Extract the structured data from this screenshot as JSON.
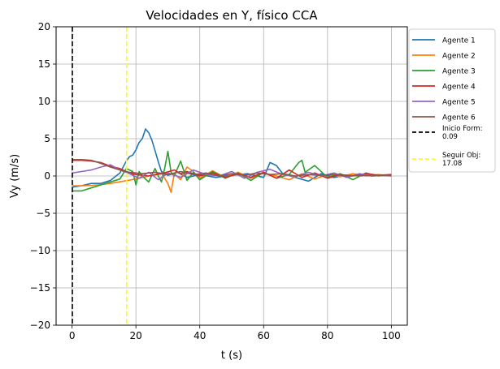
{
  "chart_data": {
    "type": "line",
    "title": "Velocidades en Y, físico CCA",
    "xlabel": "t (s)",
    "ylabel": "Vy (m/s)",
    "xlim": [
      -5,
      105
    ],
    "ylim": [
      -20,
      20
    ],
    "xticks": [
      0,
      20,
      40,
      60,
      80,
      100
    ],
    "yticks": [
      -20,
      -15,
      -10,
      -5,
      0,
      5,
      10,
      15,
      20
    ],
    "xtick_labels": [
      "0",
      "20",
      "40",
      "60",
      "80",
      "100"
    ],
    "ytick_labels": [
      "−20",
      "−15",
      "−10",
      "−5",
      "0",
      "5",
      "10",
      "15",
      "20"
    ],
    "grid": true,
    "legend_position": "outside-right",
    "series": [
      {
        "name": "Agente 1",
        "color": "#1f77b4",
        "x": [
          0,
          3,
          6,
          9,
          12,
          15,
          17,
          18,
          19,
          20,
          21,
          22,
          23,
          24,
          25,
          26,
          27,
          28,
          30,
          33,
          36,
          40,
          45,
          50,
          55,
          60,
          62,
          64,
          66,
          70,
          74,
          78,
          82,
          86,
          90,
          95,
          100
        ],
        "y": [
          -1.5,
          -1.3,
          -1.0,
          -1.0,
          -0.6,
          0.4,
          2.0,
          2.6,
          2.8,
          3.5,
          4.5,
          5.0,
          6.3,
          5.8,
          4.8,
          3.4,
          1.9,
          0.6,
          0.1,
          0.5,
          -0.2,
          0.2,
          -0.2,
          0.1,
          0.3,
          -0.2,
          1.8,
          1.4,
          0.3,
          -0.2,
          -0.7,
          0.3,
          -0.2,
          0.1,
          0.0,
          0.1,
          0.0
        ]
      },
      {
        "name": "Agente 2",
        "color": "#ff7f0e",
        "x": [
          0,
          4,
          8,
          12,
          16,
          20,
          24,
          28,
          30,
          31,
          32,
          34,
          36,
          38,
          40,
          44,
          48,
          52,
          56,
          60,
          64,
          68,
          72,
          76,
          80,
          84,
          88,
          92,
          96,
          100
        ],
        "y": [
          -1.3,
          -1.3,
          -1.2,
          -1.0,
          -0.7,
          -0.4,
          0.0,
          0.4,
          -1.0,
          -2.2,
          0.3,
          -0.5,
          1.2,
          0.6,
          -0.3,
          0.7,
          -0.2,
          0.5,
          -0.3,
          0.4,
          0.0,
          -0.5,
          0.3,
          -0.4,
          0.2,
          -0.1,
          0.3,
          0.0,
          0.2,
          0.0
        ]
      },
      {
        "name": "Agente 3",
        "color": "#2ca02c",
        "x": [
          0,
          3,
          6,
          9,
          12,
          15,
          17,
          19,
          20,
          21,
          22,
          24,
          26,
          27,
          28,
          29,
          30,
          31,
          32,
          34,
          36,
          38,
          40,
          44,
          48,
          52,
          56,
          60,
          64,
          68,
          71,
          72,
          73,
          76,
          80,
          84,
          88,
          92,
          96,
          100
        ],
        "y": [
          -2.0,
          -2.0,
          -1.6,
          -1.2,
          -0.8,
          -0.4,
          1.0,
          0.6,
          -1.2,
          0.6,
          0.0,
          -0.8,
          1.0,
          0.0,
          -0.8,
          1.0,
          3.3,
          0.5,
          0.0,
          2.0,
          -0.6,
          0.5,
          -0.5,
          0.6,
          -0.3,
          0.4,
          -0.6,
          0.5,
          -0.3,
          0.2,
          1.8,
          2.1,
          0.5,
          1.4,
          -0.2,
          0.3,
          -0.5,
          0.4,
          0.0,
          0.2
        ]
      },
      {
        "name": "Agente 4",
        "color": "#d62728",
        "x": [
          0,
          3,
          6,
          9,
          12,
          15,
          18,
          20,
          24,
          28,
          32,
          34,
          36,
          40,
          44,
          48,
          52,
          56,
          60,
          64,
          68,
          72,
          76,
          80,
          84,
          88,
          92,
          96,
          100
        ],
        "y": [
          2.1,
          2.1,
          2.0,
          1.8,
          1.3,
          1.0,
          0.4,
          0.2,
          0.0,
          0.3,
          0.8,
          0.3,
          0.6,
          0.0,
          0.4,
          -0.2,
          0.3,
          -0.2,
          0.5,
          -0.3,
          0.8,
          -0.2,
          0.4,
          -0.3,
          0.2,
          0.0,
          0.3,
          0.1,
          0.2
        ]
      },
      {
        "name": "Agente 5",
        "color": "#9467bd",
        "x": [
          0,
          3,
          6,
          9,
          12,
          15,
          18,
          21,
          24,
          27,
          30,
          34,
          38,
          42,
          46,
          50,
          54,
          58,
          62,
          66,
          70,
          74,
          78,
          82,
          86,
          90,
          94,
          98,
          100
        ],
        "y": [
          0.4,
          0.6,
          0.8,
          1.2,
          1.5,
          0.8,
          0.3,
          -0.3,
          0.5,
          -0.5,
          0.4,
          -0.2,
          0.8,
          0.2,
          0.0,
          0.6,
          -0.3,
          0.5,
          0.9,
          0.2,
          -0.1,
          0.5,
          0.0,
          0.4,
          -0.2,
          0.3,
          0.0,
          0.1,
          0.0
        ]
      },
      {
        "name": "Agente 6",
        "color": "#8c564b",
        "x": [
          0,
          3,
          6,
          9,
          12,
          15,
          18,
          22,
          26,
          30,
          34,
          38,
          42,
          46,
          50,
          54,
          58,
          62,
          66,
          70,
          74,
          78,
          82,
          86,
          90,
          94,
          98,
          100
        ],
        "y": [
          2.2,
          2.2,
          2.1,
          1.7,
          1.2,
          0.8,
          0.5,
          0.3,
          0.5,
          0.2,
          0.6,
          0.2,
          0.4,
          0.0,
          0.3,
          0.1,
          0.4,
          0.2,
          0.3,
          0.0,
          0.2,
          0.1,
          0.2,
          0.0,
          0.1,
          0.0,
          0.1,
          0.1
        ]
      }
    ],
    "vlines": [
      {
        "label": "Inicio Form:\n0.09",
        "label_lines": [
          "Inicio Form:",
          "0.09"
        ],
        "x": 0.09,
        "color": "#000000"
      },
      {
        "label": "Seguir Obj:\n17.08",
        "label_lines": [
          "Seguir Obj:",
          "17.08"
        ],
        "x": 17.08,
        "color": "#ffff00"
      }
    ]
  }
}
